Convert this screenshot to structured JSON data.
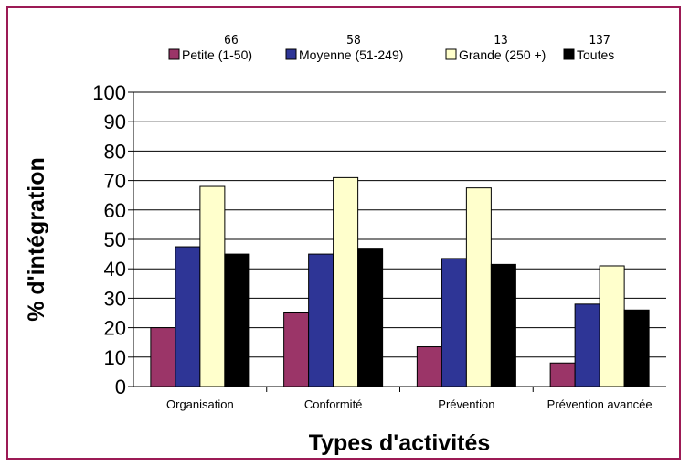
{
  "chart_data": {
    "type": "bar",
    "title": "",
    "xlabel": "Types d'activités",
    "ylabel": "% d'intégration",
    "ylim": [
      0,
      100
    ],
    "yticks": [
      "0",
      "10",
      "20",
      "30",
      "40",
      "50",
      "60",
      "70",
      "80",
      "90",
      "100"
    ],
    "categories": [
      "Organisation",
      "Conformité",
      "Prévention",
      "Prévention avancée"
    ],
    "series": [
      {
        "name": "Petite (1-50)",
        "count": "66",
        "color": "#9b3568",
        "values": [
          20,
          25,
          13.5,
          8
        ]
      },
      {
        "name": "Moyenne (51-249)",
        "count": "58",
        "color": "#2e3596",
        "values": [
          47.5,
          45,
          43.5,
          28
        ]
      },
      {
        "name": "Grande (250 +)",
        "count": "13",
        "color": "#ffffcc",
        "values": [
          68,
          71,
          67.5,
          41
        ]
      },
      {
        "name": "Toutes",
        "count": "137",
        "color": "#000000",
        "values": [
          45,
          47,
          41.5,
          26
        ]
      }
    ],
    "grid": "horizontal",
    "legend_position": "top"
  },
  "colors": {
    "frame": "#9c1a55",
    "grid": "#000000"
  }
}
